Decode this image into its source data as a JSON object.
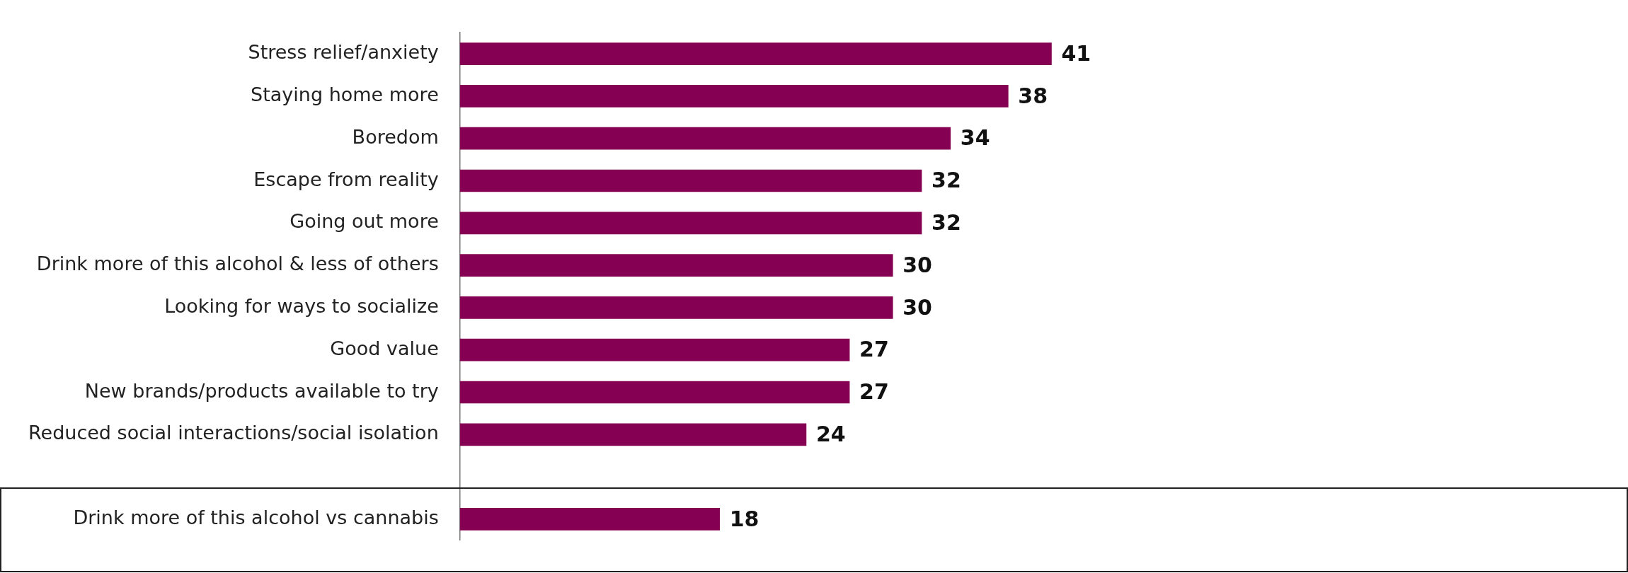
{
  "chart_data": {
    "type": "bar",
    "orientation": "horizontal",
    "categories": [
      "Stress relief/anxiety",
      "Staying home more",
      "Boredom",
      "Escape from reality",
      "Going out more",
      "Drink more of this alcohol & less of others",
      "Looking for ways to socialize",
      "Good value",
      "New brands/products available to try",
      "Reduced social interactions/social isolation",
      null,
      "Drink more of this alcohol vs cannabis"
    ],
    "values": [
      41,
      38,
      34,
      32,
      32,
      30,
      30,
      27,
      27,
      24,
      null,
      18
    ],
    "color": "#850052",
    "data_labels": true,
    "grid": false,
    "legend": false,
    "tick_labels": "y"
  }
}
